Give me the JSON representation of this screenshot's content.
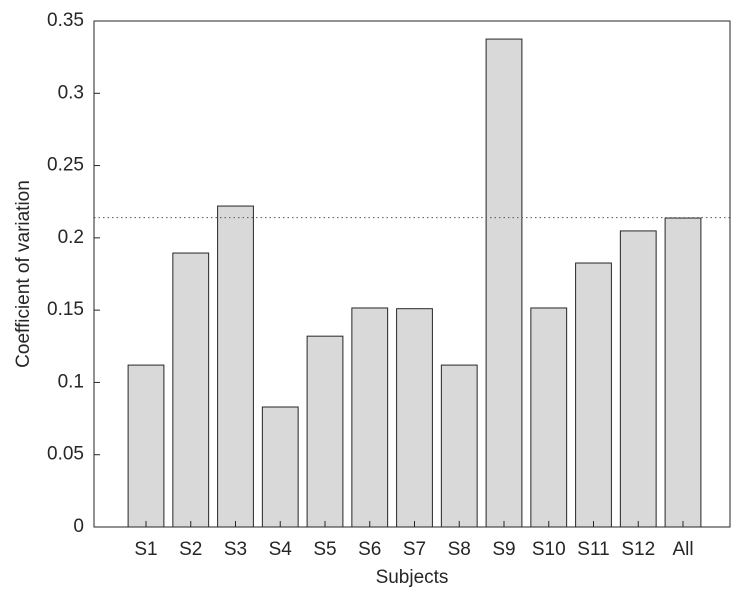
{
  "chart_data": {
    "type": "bar",
    "x_label": "Subjects",
    "y_label": "Coefficient of variation",
    "categories": [
      "S1",
      "S2",
      "S3",
      "S4",
      "S5",
      "S6",
      "S7",
      "S8",
      "S9",
      "S10",
      "S11",
      "S12",
      "All"
    ],
    "values": [
      0.112,
      0.1895,
      0.222,
      0.083,
      0.132,
      0.1515,
      0.151,
      0.112,
      0.3375,
      0.1515,
      0.1826,
      0.2048,
      0.2137
    ],
    "color": "#d9d9d9",
    "reference_line": 0.214,
    "ylim": [
      0,
      0.35
    ],
    "yticks": [
      0,
      0.05,
      0.1,
      0.15,
      0.2,
      0.25,
      0.3,
      0.35
    ]
  }
}
